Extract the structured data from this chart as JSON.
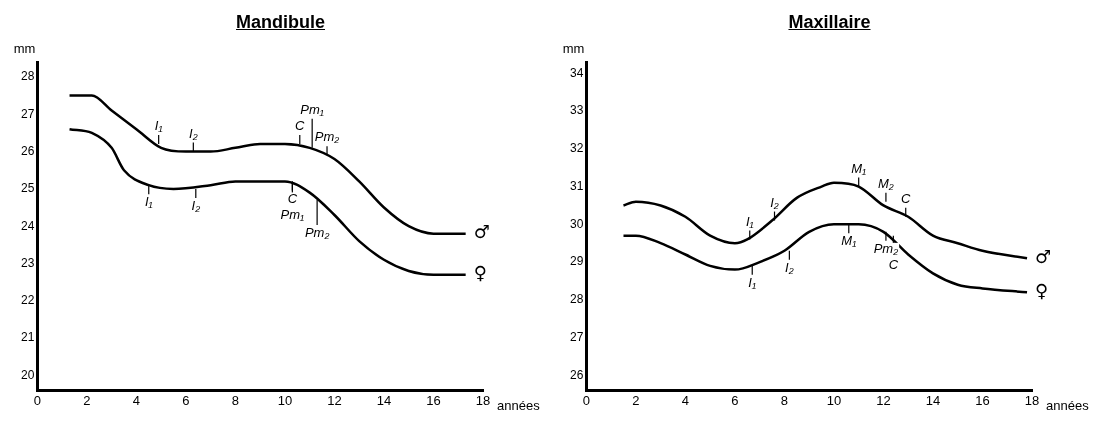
{
  "chart_data": [
    {
      "type": "line",
      "title": "Mandibule",
      "xlabel": "années",
      "ylabel": "mm",
      "xlim": [
        0,
        18
      ],
      "xticks": [
        0,
        2,
        4,
        6,
        8,
        10,
        12,
        14,
        16,
        18
      ],
      "ylim": [
        19.6,
        28.4
      ],
      "yticks": [
        20,
        21,
        22,
        23,
        24,
        25,
        26,
        27,
        28
      ],
      "grid": false,
      "legend": false,
      "marker": "none",
      "line_style": "solid",
      "series": [
        {
          "name": "♂",
          "color": "#000000",
          "x": [
            1.3,
            2.2,
            3,
            4,
            5,
            6,
            7,
            8,
            9,
            10,
            11,
            12,
            13,
            14,
            15,
            16,
            17.3
          ],
          "values": [
            27.5,
            27.5,
            27.1,
            26.6,
            26.1,
            26.0,
            26.0,
            26.1,
            26.2,
            26.2,
            26.1,
            25.8,
            25.2,
            24.5,
            24.0,
            23.8,
            23.8
          ]
        },
        {
          "name": "♀",
          "color": "#000000",
          "x": [
            1.3,
            2.2,
            3,
            3.5,
            4.5,
            5.5,
            7,
            8,
            9,
            10,
            11,
            12,
            13,
            14,
            15,
            16,
            17.3
          ],
          "values": [
            26.6,
            26.5,
            26.1,
            25.5,
            25.1,
            25.0,
            25.1,
            25.2,
            25.2,
            25.2,
            24.9,
            24.3,
            23.6,
            23.1,
            22.8,
            22.7,
            22.7
          ]
        }
      ],
      "annotations": [
        {
          "text": "I₁",
          "x": 4.9,
          "y": 26.2
        },
        {
          "text": "I₂",
          "x": 6.3,
          "y": 26.0
        },
        {
          "text": "C",
          "x": 10.6,
          "y": 26.2
        },
        {
          "text": "Pm₁",
          "x": 11.1,
          "y": 26.1
        },
        {
          "text": "Pm₂",
          "x": 11.7,
          "y": 25.9
        },
        {
          "text": "I₁",
          "x": 4.5,
          "y": 25.1
        },
        {
          "text": "I₂",
          "x": 6.4,
          "y": 25.0
        },
        {
          "text": "C",
          "x": 10.3,
          "y": 25.2
        },
        {
          "text": "Pm₁",
          "x": 10.3,
          "y": 25.2
        },
        {
          "text": "Pm₂",
          "x": 11.3,
          "y": 24.7
        }
      ]
    },
    {
      "type": "line",
      "title": "Maxillaire",
      "xlabel": "années",
      "ylabel": "mm",
      "xlim": [
        0,
        18
      ],
      "xticks": [
        0,
        2,
        4,
        6,
        8,
        10,
        12,
        14,
        16,
        18
      ],
      "ylim": [
        25.6,
        34.3
      ],
      "yticks": [
        26,
        27,
        28,
        29,
        30,
        31,
        32,
        33,
        34
      ],
      "grid": false,
      "legend": false,
      "marker": "none",
      "line_style": "solid",
      "series": [
        {
          "name": "♂",
          "color": "#000000",
          "x": [
            1.5,
            2,
            3,
            4,
            5,
            6,
            6.5,
            7.5,
            8.5,
            9.5,
            10,
            11,
            12,
            13,
            14,
            15,
            16,
            17.8
          ],
          "values": [
            30.5,
            30.6,
            30.5,
            30.2,
            29.7,
            29.5,
            29.6,
            30.1,
            30.7,
            31.0,
            31.1,
            31.0,
            30.5,
            30.2,
            29.7,
            29.5,
            29.3,
            29.1
          ]
        },
        {
          "name": "♀",
          "color": "#000000",
          "x": [
            1.5,
            2,
            3,
            4,
            5,
            6,
            7,
            8,
            9,
            10,
            11,
            12,
            13,
            14,
            15,
            16,
            17.8
          ],
          "values": [
            29.7,
            29.7,
            29.5,
            29.2,
            28.9,
            28.8,
            29.0,
            29.3,
            29.8,
            30.0,
            30.0,
            29.8,
            29.2,
            28.7,
            28.4,
            28.3,
            28.2
          ]
        }
      ],
      "annotations": [
        {
          "text": "I₁",
          "x": 6.6,
          "y": 29.6
        },
        {
          "text": "I₂",
          "x": 7.6,
          "y": 30.1
        },
        {
          "text": "M₁",
          "x": 11,
          "y": 31.0
        },
        {
          "text": "M₂",
          "x": 12.1,
          "y": 30.6
        },
        {
          "text": "C",
          "x": 12.9,
          "y": 30.2
        },
        {
          "text": "I₁",
          "x": 6.7,
          "y": 28.9
        },
        {
          "text": "I₂",
          "x": 8.2,
          "y": 29.3
        },
        {
          "text": "M₁",
          "x": 10.6,
          "y": 30.0
        },
        {
          "text": "Pm₂",
          "x": 12.1,
          "y": 29.8
        },
        {
          "text": "C",
          "x": 12.4,
          "y": 29.7
        }
      ]
    }
  ]
}
